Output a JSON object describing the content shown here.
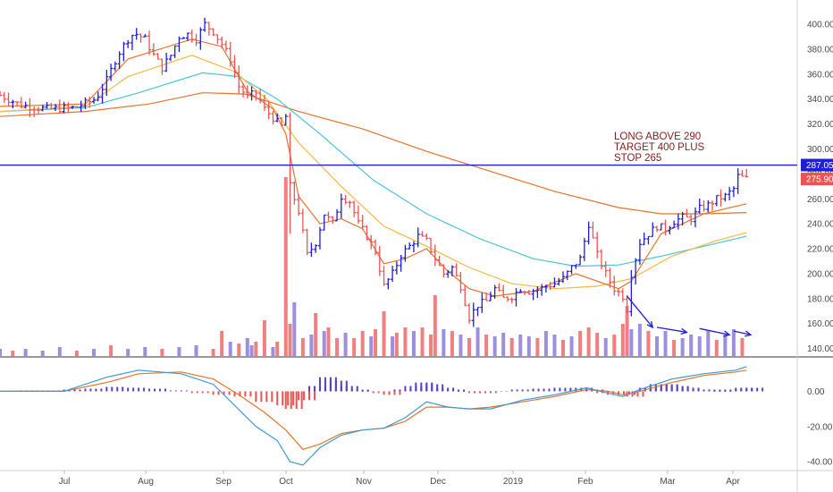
{
  "chart_data": {
    "type": "ohlc",
    "price_axis": {
      "ticks": [
        "400.00",
        "380.00",
        "360.00",
        "340.00",
        "320.00",
        "300.00",
        "280.00",
        "260.00",
        "240.00",
        "220.00",
        "200.00",
        "180.00",
        "160.00",
        "140.00"
      ],
      "range": [
        134,
        405
      ],
      "grid": false
    },
    "macd_axis": {
      "ticks": [
        "0.00",
        "-20.00",
        "-40.00"
      ],
      "range": [
        -43,
        17
      ]
    },
    "time_axis": {
      "labels": [
        "Jul",
        "Aug",
        "Sep",
        "Oct",
        "Nov",
        "Dec",
        "2019",
        "Feb",
        "Mar",
        "Apr"
      ]
    },
    "horizontal_line": {
      "label": "287.05",
      "value": 287.05,
      "color": "#1f1fd6"
    },
    "last_price": {
      "label": "275.90",
      "value": 275.9,
      "color": "#ef5350"
    },
    "annotation": [
      "LONG ABOVE 290",
      "TARGET 400 PLUS",
      "STOP 265"
    ],
    "colors": {
      "up": "#1f1fd6",
      "down": "#ef5350",
      "volume_up": "#9c8fe0",
      "volume_down": "#f08080",
      "ma_fast": "#e8732a",
      "ma_mid": "#f5b942",
      "ma_teal": "#4cc3d9",
      "ma_slow": "#e8732a",
      "macd_line": "#3a9ad9",
      "signal_line": "#e8732a",
      "hist_pos": "#5b3fc4",
      "hist_neg": "#ef5350"
    },
    "price_path": [
      [
        0,
        343
      ],
      [
        10,
        335
      ],
      [
        22,
        332
      ],
      [
        35,
        333
      ],
      [
        45,
        340
      ],
      [
        50,
        355
      ],
      [
        55,
        375
      ],
      [
        60,
        388
      ],
      [
        63,
        393
      ],
      [
        68,
        388
      ],
      [
        72,
        375
      ],
      [
        76,
        365
      ],
      [
        80,
        375
      ],
      [
        84,
        390
      ],
      [
        88,
        392
      ],
      [
        92,
        388
      ],
      [
        96,
        400
      ],
      [
        100,
        394
      ],
      [
        104,
        384
      ],
      [
        108,
        372
      ],
      [
        112,
        350
      ],
      [
        116,
        342
      ],
      [
        120,
        345
      ],
      [
        124,
        332
      ],
      [
        128,
        325
      ],
      [
        132,
        318
      ],
      [
        134,
        326
      ],
      [
        136,
        270
      ],
      [
        140,
        250
      ],
      [
        144,
        215
      ],
      [
        148,
        225
      ],
      [
        152,
        248
      ],
      [
        156,
        240
      ],
      [
        160,
        262
      ],
      [
        164,
        258
      ],
      [
        168,
        240
      ],
      [
        172,
        230
      ],
      [
        176,
        218
      ],
      [
        180,
        190
      ],
      [
        184,
        200
      ],
      [
        188,
        215
      ],
      [
        192,
        222
      ],
      [
        196,
        230
      ],
      [
        200,
        226
      ],
      [
        204,
        212
      ],
      [
        208,
        200
      ],
      [
        212,
        205
      ],
      [
        216,
        190
      ],
      [
        220,
        165
      ],
      [
        224,
        175
      ],
      [
        228,
        178
      ],
      [
        232,
        188
      ],
      [
        236,
        180
      ],
      [
        240,
        182
      ],
      [
        244,
        188
      ],
      [
        248,
        186
      ],
      [
        252,
        187
      ],
      [
        256,
        190
      ],
      [
        260,
        192
      ],
      [
        264,
        196
      ],
      [
        268,
        205
      ],
      [
        272,
        212
      ],
      [
        276,
        240
      ],
      [
        280,
        215
      ],
      [
        284,
        200
      ],
      [
        288,
        188
      ],
      [
        292,
        182
      ],
      [
        294,
        172
      ],
      [
        296,
        200
      ],
      [
        300,
        225
      ],
      [
        304,
        232
      ],
      [
        308,
        238
      ],
      [
        312,
        236
      ],
      [
        316,
        242
      ],
      [
        320,
        245
      ],
      [
        324,
        244
      ],
      [
        328,
        252
      ],
      [
        332,
        255
      ],
      [
        336,
        260
      ],
      [
        340,
        262
      ],
      [
        344,
        268
      ],
      [
        346,
        278
      ],
      [
        350,
        276
      ]
    ],
    "volume": [
      [
        0,
        4,
        "u"
      ],
      [
        6,
        3,
        "d"
      ],
      [
        12,
        4,
        "u"
      ],
      [
        20,
        3,
        "u"
      ],
      [
        28,
        5,
        "u"
      ],
      [
        36,
        3,
        "d"
      ],
      [
        44,
        4,
        "u"
      ],
      [
        52,
        6,
        "d"
      ],
      [
        60,
        4,
        "u"
      ],
      [
        68,
        5,
        "u"
      ],
      [
        76,
        4,
        "d"
      ],
      [
        84,
        5,
        "u"
      ],
      [
        92,
        6,
        "u"
      ],
      [
        100,
        4,
        "d"
      ],
      [
        104,
        14,
        "d"
      ],
      [
        108,
        8,
        "u"
      ],
      [
        112,
        7,
        "d"
      ],
      [
        116,
        10,
        "u"
      ],
      [
        118,
        6,
        "u"
      ],
      [
        120,
        8,
        "d"
      ],
      [
        124,
        20,
        "d"
      ],
      [
        128,
        5,
        "u"
      ],
      [
        130,
        8,
        "d"
      ],
      [
        134,
        100,
        "d"
      ],
      [
        136,
        18,
        "d"
      ],
      [
        138,
        30,
        "u"
      ],
      [
        142,
        10,
        "d"
      ],
      [
        146,
        12,
        "u"
      ],
      [
        148,
        24,
        "d"
      ],
      [
        152,
        14,
        "u"
      ],
      [
        154,
        16,
        "d"
      ],
      [
        158,
        10,
        "d"
      ],
      [
        162,
        13,
        "u"
      ],
      [
        166,
        10,
        "d"
      ],
      [
        170,
        14,
        "d"
      ],
      [
        174,
        11,
        "u"
      ],
      [
        176,
        15,
        "d"
      ],
      [
        180,
        25,
        "d"
      ],
      [
        184,
        11,
        "u"
      ],
      [
        186,
        13,
        "d"
      ],
      [
        190,
        16,
        "d"
      ],
      [
        194,
        14,
        "u"
      ],
      [
        198,
        16,
        "d"
      ],
      [
        202,
        12,
        "d"
      ],
      [
        204,
        34,
        "d"
      ],
      [
        208,
        15,
        "u"
      ],
      [
        212,
        14,
        "d"
      ],
      [
        216,
        12,
        "u"
      ],
      [
        220,
        10,
        "d"
      ],
      [
        224,
        16,
        "u"
      ],
      [
        228,
        12,
        "d"
      ],
      [
        232,
        11,
        "u"
      ],
      [
        236,
        13,
        "u"
      ],
      [
        240,
        10,
        "d"
      ],
      [
        244,
        12,
        "u"
      ],
      [
        248,
        11,
        "u"
      ],
      [
        252,
        10,
        "d"
      ],
      [
        256,
        14,
        "u"
      ],
      [
        260,
        12,
        "u"
      ],
      [
        264,
        9,
        "d"
      ],
      [
        268,
        11,
        "u"
      ],
      [
        272,
        14,
        "d"
      ],
      [
        276,
        16,
        "d"
      ],
      [
        280,
        13,
        "d"
      ],
      [
        284,
        10,
        "u"
      ],
      [
        288,
        12,
        "d"
      ],
      [
        292,
        18,
        "d"
      ],
      [
        294,
        28,
        "d"
      ],
      [
        296,
        15,
        "u"
      ],
      [
        300,
        18,
        "u"
      ],
      [
        304,
        14,
        "d"
      ],
      [
        308,
        11,
        "u"
      ],
      [
        312,
        14,
        "u"
      ],
      [
        316,
        9,
        "d"
      ],
      [
        320,
        10,
        "u"
      ],
      [
        324,
        12,
        "u"
      ],
      [
        328,
        11,
        "u"
      ],
      [
        332,
        14,
        "u"
      ],
      [
        336,
        9,
        "d"
      ],
      [
        340,
        12,
        "u"
      ],
      [
        344,
        15,
        "u"
      ],
      [
        348,
        10,
        "d"
      ]
    ],
    "ma_fast": [
      [
        0,
        334
      ],
      [
        40,
        336
      ],
      [
        60,
        372
      ],
      [
        90,
        388
      ],
      [
        104,
        382
      ],
      [
        116,
        346
      ],
      [
        128,
        332
      ],
      [
        134,
        312
      ],
      [
        140,
        262
      ],
      [
        150,
        240
      ],
      [
        160,
        244
      ],
      [
        170,
        236
      ],
      [
        180,
        208
      ],
      [
        190,
        212
      ],
      [
        200,
        220
      ],
      [
        210,
        202
      ],
      [
        220,
        188
      ],
      [
        232,
        182
      ],
      [
        250,
        186
      ],
      [
        270,
        200
      ],
      [
        290,
        188
      ],
      [
        296,
        194
      ],
      [
        310,
        232
      ],
      [
        330,
        248
      ],
      [
        350,
        256
      ]
    ],
    "ma_mid": [
      [
        0,
        330
      ],
      [
        40,
        334
      ],
      [
        60,
        358
      ],
      [
        90,
        375
      ],
      [
        110,
        362
      ],
      [
        125,
        340
      ],
      [
        140,
        305
      ],
      [
        160,
        270
      ],
      [
        180,
        238
      ],
      [
        200,
        222
      ],
      [
        220,
        205
      ],
      [
        240,
        192
      ],
      [
        260,
        188
      ],
      [
        280,
        190
      ],
      [
        296,
        196
      ],
      [
        315,
        214
      ],
      [
        335,
        226
      ],
      [
        350,
        233
      ]
    ],
    "ma_teal": [
      [
        0,
        330
      ],
      [
        40,
        333
      ],
      [
        65,
        345
      ],
      [
        95,
        361
      ],
      [
        112,
        358
      ],
      [
        130,
        340
      ],
      [
        150,
        312
      ],
      [
        175,
        275
      ],
      [
        200,
        248
      ],
      [
        225,
        228
      ],
      [
        250,
        212
      ],
      [
        270,
        206
      ],
      [
        290,
        207
      ],
      [
        310,
        214
      ],
      [
        330,
        222
      ],
      [
        350,
        230
      ]
    ],
    "ma_slow": [
      [
        0,
        326
      ],
      [
        40,
        330
      ],
      [
        70,
        336
      ],
      [
        95,
        345
      ],
      [
        115,
        344
      ],
      [
        140,
        330
      ],
      [
        170,
        316
      ],
      [
        200,
        298
      ],
      [
        230,
        282
      ],
      [
        260,
        266
      ],
      [
        290,
        253
      ],
      [
        310,
        248
      ],
      [
        330,
        248
      ],
      [
        350,
        249
      ]
    ],
    "macd_line": [
      [
        0,
        0
      ],
      [
        30,
        0
      ],
      [
        50,
        8
      ],
      [
        65,
        12
      ],
      [
        85,
        10
      ],
      [
        100,
        4
      ],
      [
        110,
        -8
      ],
      [
        120,
        -20
      ],
      [
        130,
        -28
      ],
      [
        136,
        -40
      ],
      [
        142,
        -42
      ],
      [
        150,
        -32
      ],
      [
        160,
        -25
      ],
      [
        170,
        -22
      ],
      [
        180,
        -21
      ],
      [
        190,
        -15
      ],
      [
        200,
        -6
      ],
      [
        210,
        -9
      ],
      [
        220,
        -10
      ],
      [
        230,
        -10
      ],
      [
        245,
        -5
      ],
      [
        260,
        -2
      ],
      [
        275,
        2
      ],
      [
        285,
        -1
      ],
      [
        292,
        -3
      ],
      [
        300,
        1
      ],
      [
        315,
        7
      ],
      [
        330,
        10
      ],
      [
        345,
        12
      ],
      [
        350,
        14
      ]
    ],
    "signal_line": [
      [
        0,
        0
      ],
      [
        30,
        0
      ],
      [
        50,
        5
      ],
      [
        65,
        10
      ],
      [
        85,
        11
      ],
      [
        100,
        7
      ],
      [
        112,
        -2
      ],
      [
        124,
        -12
      ],
      [
        134,
        -22
      ],
      [
        142,
        -33
      ],
      [
        150,
        -30
      ],
      [
        160,
        -24
      ],
      [
        170,
        -22
      ],
      [
        180,
        -21
      ],
      [
        190,
        -17
      ],
      [
        200,
        -9
      ],
      [
        210,
        -9
      ],
      [
        220,
        -10
      ],
      [
        230,
        -9
      ],
      [
        245,
        -6
      ],
      [
        260,
        -3
      ],
      [
        275,
        1
      ],
      [
        285,
        0
      ],
      [
        292,
        -2
      ],
      [
        300,
        0
      ],
      [
        315,
        5
      ],
      [
        330,
        9
      ],
      [
        345,
        11
      ],
      [
        350,
        12
      ]
    ],
    "macd_hist": [
      [
        0,
        0
      ],
      [
        10,
        0.5
      ],
      [
        20,
        0.5
      ],
      [
        30,
        1
      ],
      [
        40,
        1.5
      ],
      [
        50,
        2.5
      ],
      [
        60,
        2
      ],
      [
        70,
        1.5
      ],
      [
        80,
        0.5
      ],
      [
        90,
        -1
      ],
      [
        100,
        -2
      ],
      [
        110,
        -3
      ],
      [
        120,
        -6
      ],
      [
        130,
        -8
      ],
      [
        134,
        -10
      ],
      [
        140,
        -5
      ],
      [
        145,
        3
      ],
      [
        150,
        8
      ],
      [
        155,
        6
      ],
      [
        160,
        3
      ],
      [
        165,
        1
      ],
      [
        170,
        0
      ],
      [
        175,
        -1
      ],
      [
        180,
        -2
      ],
      [
        185,
        1
      ],
      [
        190,
        3
      ],
      [
        195,
        5
      ],
      [
        200,
        4
      ],
      [
        205,
        2
      ],
      [
        210,
        1
      ],
      [
        215,
        0
      ],
      [
        220,
        -1
      ],
      [
        225,
        -1
      ],
      [
        230,
        0
      ],
      [
        240,
        1
      ],
      [
        250,
        1.5
      ],
      [
        260,
        2
      ],
      [
        270,
        2
      ],
      [
        275,
        1
      ],
      [
        280,
        -1
      ],
      [
        285,
        -2
      ],
      [
        290,
        -2
      ],
      [
        294,
        -3
      ],
      [
        300,
        2
      ],
      [
        305,
        4
      ],
      [
        310,
        4
      ],
      [
        315,
        3
      ],
      [
        320,
        2
      ],
      [
        325,
        1
      ],
      [
        330,
        1
      ],
      [
        335,
        0
      ],
      [
        340,
        1
      ],
      [
        345,
        2
      ],
      [
        350,
        2
      ]
    ],
    "arrows": [
      [
        [
          294,
          182
        ],
        [
          306,
          157
        ]
      ],
      [
        [
          308,
          157
        ],
        [
          322,
          153
        ]
      ],
      [
        [
          328,
          156
        ],
        [
          342,
          151
        ]
      ],
      [
        [
          344,
          154
        ],
        [
          352,
          151
        ]
      ]
    ]
  }
}
